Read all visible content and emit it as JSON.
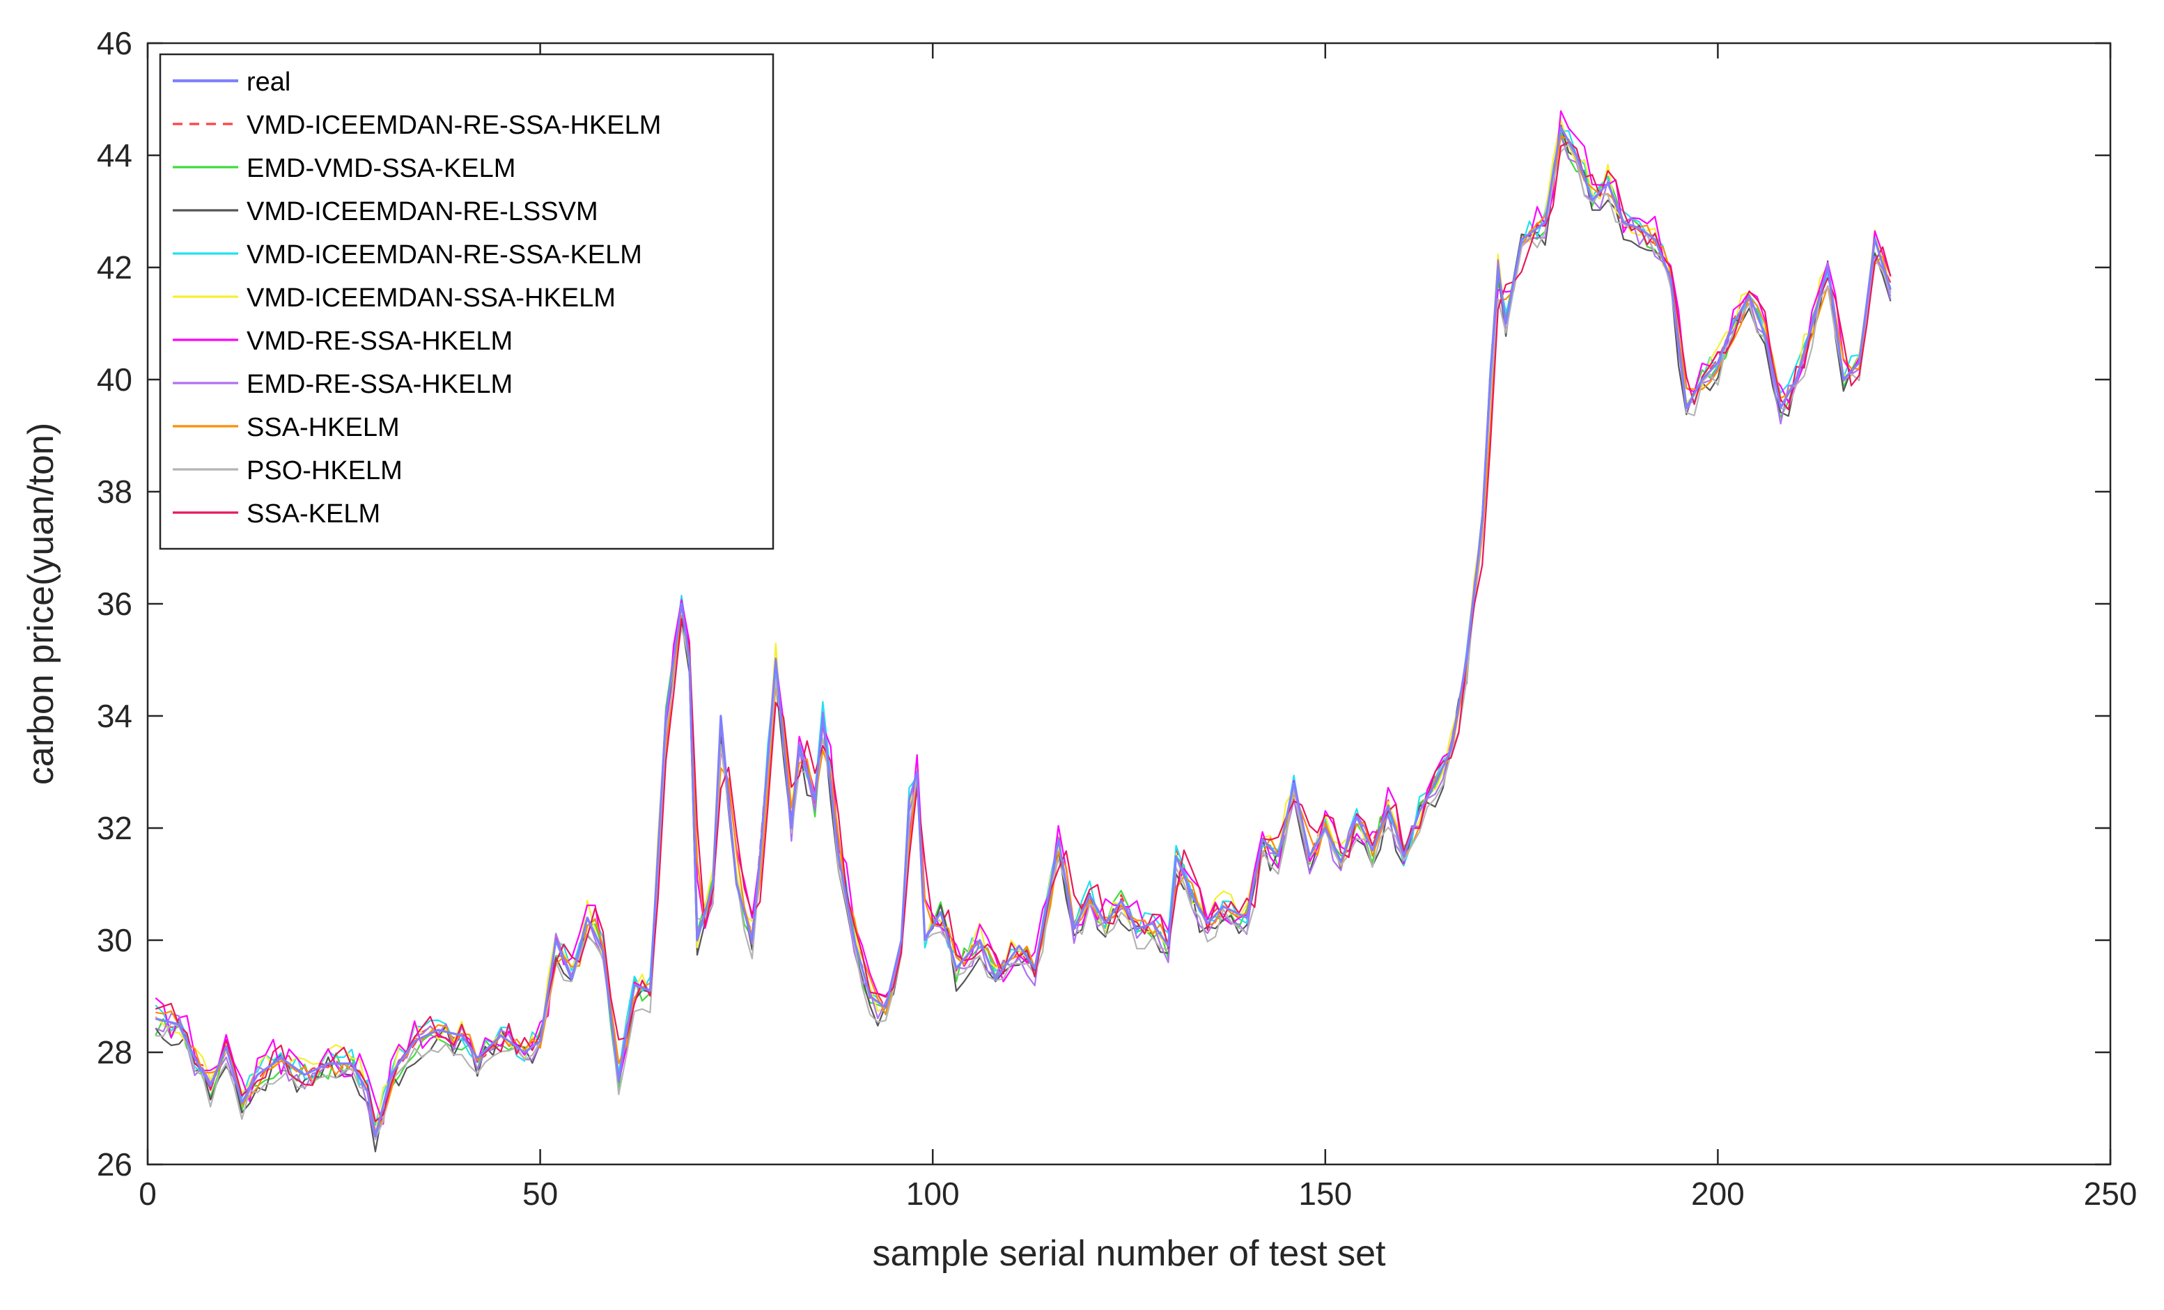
{
  "chart_data": {
    "type": "line",
    "title": "",
    "xlabel": "sample serial number of test set",
    "ylabel": "carbon price(yuan/ton)",
    "xlim": [
      0,
      250
    ],
    "ylim": [
      26,
      46
    ],
    "xticks": [
      0,
      50,
      100,
      150,
      200,
      250
    ],
    "yticks": [
      26,
      28,
      30,
      32,
      34,
      36,
      38,
      40,
      42,
      44,
      46
    ],
    "grid": false,
    "legend_position": "top-left",
    "colors": {
      "axis": "#262626",
      "background": "#ffffff"
    },
    "real_anchors": [
      [
        1,
        28.6
      ],
      [
        4,
        28.5
      ],
      [
        6,
        27.9
      ],
      [
        8,
        27.4
      ],
      [
        10,
        28.1
      ],
      [
        12,
        27.1
      ],
      [
        14,
        27.6
      ],
      [
        17,
        27.9
      ],
      [
        20,
        27.6
      ],
      [
        23,
        27.8
      ],
      [
        26,
        27.8
      ],
      [
        28,
        27.3
      ],
      [
        29,
        26.5
      ],
      [
        31,
        27.6
      ],
      [
        34,
        28.2
      ],
      [
        37,
        28.4
      ],
      [
        40,
        28.3
      ],
      [
        42,
        27.9
      ],
      [
        45,
        28.3
      ],
      [
        48,
        28.0
      ],
      [
        50,
        28.2
      ],
      [
        52,
        30.0
      ],
      [
        54,
        29.3
      ],
      [
        56,
        30.4
      ],
      [
        58,
        29.8
      ],
      [
        60,
        27.5
      ],
      [
        62,
        29.2
      ],
      [
        64,
        29.1
      ],
      [
        66,
        34.0
      ],
      [
        68,
        36.0
      ],
      [
        69,
        35.0
      ],
      [
        70,
        30.0
      ],
      [
        72,
        31.0
      ],
      [
        73,
        34.0
      ],
      [
        75,
        31.0
      ],
      [
        77,
        30.0
      ],
      [
        78,
        31.5
      ],
      [
        80,
        35.0
      ],
      [
        82,
        32.0
      ],
      [
        83,
        33.5
      ],
      [
        85,
        32.5
      ],
      [
        86,
        34.0
      ],
      [
        88,
        31.5
      ],
      [
        90,
        30.0
      ],
      [
        92,
        29.0
      ],
      [
        94,
        28.8
      ],
      [
        96,
        30.0
      ],
      [
        97,
        32.5
      ],
      [
        98,
        33.0
      ],
      [
        99,
        30.0
      ],
      [
        101,
        30.5
      ],
      [
        103,
        29.5
      ],
      [
        106,
        30.0
      ],
      [
        108,
        29.3
      ],
      [
        111,
        29.9
      ],
      [
        113,
        29.5
      ],
      [
        115,
        31.0
      ],
      [
        116,
        31.8
      ],
      [
        118,
        30.2
      ],
      [
        120,
        30.8
      ],
      [
        122,
        30.3
      ],
      [
        124,
        30.7
      ],
      [
        126,
        30.2
      ],
      [
        128,
        30.3
      ],
      [
        130,
        29.9
      ],
      [
        131,
        31.5
      ],
      [
        133,
        30.8
      ],
      [
        135,
        30.3
      ],
      [
        137,
        30.6
      ],
      [
        140,
        30.4
      ],
      [
        142,
        31.8
      ],
      [
        144,
        31.5
      ],
      [
        146,
        32.8
      ],
      [
        148,
        31.5
      ],
      [
        150,
        32.0
      ],
      [
        152,
        31.4
      ],
      [
        154,
        32.2
      ],
      [
        156,
        31.6
      ],
      [
        158,
        32.4
      ],
      [
        160,
        31.5
      ],
      [
        162,
        32.3
      ],
      [
        164,
        32.8
      ],
      [
        166,
        33.4
      ],
      [
        168,
        35.0
      ],
      [
        170,
        37.5
      ],
      [
        171,
        40.0
      ],
      [
        172,
        42.0
      ],
      [
        173,
        41.0
      ],
      [
        175,
        42.5
      ],
      [
        178,
        42.8
      ],
      [
        180,
        44.5
      ],
      [
        182,
        44.0
      ],
      [
        184,
        43.2
      ],
      [
        186,
        43.5
      ],
      [
        188,
        42.8
      ],
      [
        190,
        42.7
      ],
      [
        192,
        42.5
      ],
      [
        194,
        41.8
      ],
      [
        196,
        39.5
      ],
      [
        198,
        40.0
      ],
      [
        200,
        40.3
      ],
      [
        202,
        41.0
      ],
      [
        204,
        41.5
      ],
      [
        206,
        40.8
      ],
      [
        208,
        39.5
      ],
      [
        210,
        40.0
      ],
      [
        212,
        41.0
      ],
      [
        214,
        42.0
      ],
      [
        216,
        40.0
      ],
      [
        218,
        40.3
      ],
      [
        220,
        42.5
      ],
      [
        222,
        41.6
      ]
    ],
    "series": [
      {
        "name": "real",
        "color": "#8080ff",
        "dash": "none",
        "width": 3.2,
        "dx": 0.0,
        "dy": 0.0,
        "noise": 0.0,
        "shift": 0.0
      },
      {
        "name": "VMD-ICEEMDAN-RE-SSA-HKELM",
        "color": "#ff4040",
        "dash": "14,10",
        "width": 2.2,
        "dx": 0.0,
        "dy": 0.02,
        "noise": 0.12,
        "shift": 0.15
      },
      {
        "name": "EMD-VMD-SSA-KELM",
        "color": "#3ddc3d",
        "dash": "none",
        "width": 2.2,
        "dx": 0.0,
        "dy": -0.05,
        "noise": 0.25,
        "shift": 0.35
      },
      {
        "name": "VMD-ICEEMDAN-RE-LSSVM",
        "color": "#555555",
        "dash": "none",
        "width": 2.2,
        "dx": 0.0,
        "dy": -0.15,
        "noise": 0.28,
        "shift": 0.45
      },
      {
        "name": "VMD-ICEEMDAN-RE-SSA-KELM",
        "color": "#20e0f0",
        "dash": "none",
        "width": 2.2,
        "dx": 0.0,
        "dy": 0.05,
        "noise": 0.22,
        "shift": 0.3
      },
      {
        "name": "VMD-ICEEMDAN-SSA-HKELM",
        "color": "#f5f030",
        "dash": "none",
        "width": 2.2,
        "dx": 0.0,
        "dy": 0.08,
        "noise": 0.26,
        "shift": 0.4
      },
      {
        "name": "VMD-RE-SSA-HKELM",
        "color": "#ff00ff",
        "dash": "none",
        "width": 2.2,
        "dx": 0.0,
        "dy": 0.1,
        "noise": 0.38,
        "shift": 0.7
      },
      {
        "name": "EMD-RE-SSA-HKELM",
        "color": "#b070f0",
        "dash": "none",
        "width": 2.2,
        "dx": 0.0,
        "dy": -0.08,
        "noise": 0.24,
        "shift": 0.5
      },
      {
        "name": "SSA-HKELM",
        "color": "#ff8c00",
        "dash": "none",
        "width": 2.2,
        "dx": 0.0,
        "dy": 0.0,
        "noise": 0.2,
        "shift": 0.8
      },
      {
        "name": "PSO-HKELM",
        "color": "#b4b4b4",
        "dash": "none",
        "width": 2.2,
        "dx": 0.0,
        "dy": -0.2,
        "noise": 0.2,
        "shift": 0.6
      },
      {
        "name": "SSA-KELM",
        "color": "#e8185a",
        "dash": "none",
        "width": 2.2,
        "dx": 0.0,
        "dy": 0.05,
        "noise": 0.3,
        "shift": 0.95
      }
    ]
  }
}
